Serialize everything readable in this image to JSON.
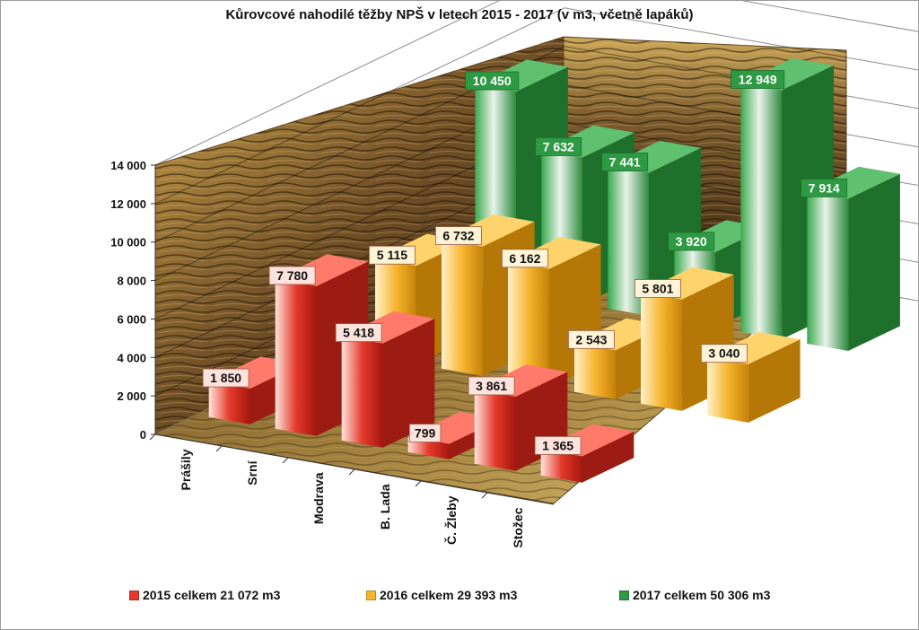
{
  "title": "Kůrovcové nahodilé těžby NPŠ v letech 2015 - 2017 (v m3, včetně lapáků)",
  "chart_data": {
    "type": "bar",
    "categories": [
      "Prášily",
      "Srní",
      "Modrava",
      "B. Lada",
      "Č. Žleby",
      "Stožec"
    ],
    "series": [
      {
        "name": "2015 celkem 21 072 m3",
        "values": [
          1850,
          7780,
          5418,
          799,
          3861,
          1365
        ],
        "labels": [
          "1 850",
          "7 780",
          "5 418",
          "799",
          "3 861",
          "1 365"
        ],
        "color": "#e53a2c"
      },
      {
        "name": "2016 celkem 29 393 m3",
        "values": [
          5115,
          6732,
          6162,
          2543,
          5801,
          3040
        ],
        "labels": [
          "5 115",
          "6 732",
          "6 162",
          "2 543",
          "5 801",
          "3 040"
        ],
        "color": "#f7b530"
      },
      {
        "name": "2017 celkem 50 306 m3",
        "values": [
          10450,
          7632,
          7441,
          3920,
          12949,
          7914
        ],
        "labels": [
          "10 450",
          "7 632",
          "7 441",
          "3 920",
          "12 949",
          "7 914"
        ],
        "color": "#2e9a44"
      }
    ],
    "yticks": [
      "0",
      "2 000",
      "4 000",
      "6 000",
      "8 000",
      "10 000",
      "12 000",
      "14 000"
    ],
    "ylim": [
      0,
      14000
    ],
    "grid": true,
    "legend_position": "bottom"
  }
}
